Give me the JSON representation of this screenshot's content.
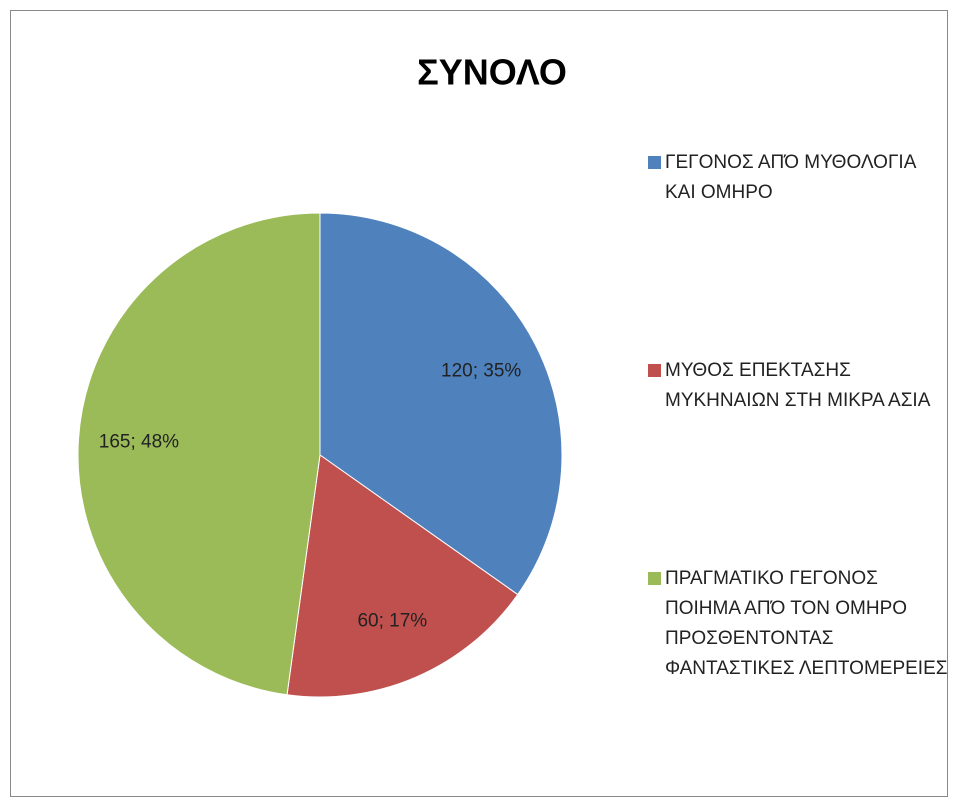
{
  "chart_data": {
    "type": "pie",
    "title": "ΣΥΝΟΛΟ",
    "categories": [
      "ΓΕΓΟΝΟΣ ΑΠΌ ΜΥΘΟΛΟΓΙΑ ΚΑΙ ΟΜΗΡΟ",
      "ΜΥΘΟΣ ΕΠΕΚΤΑΣΗΣ ΜΥΚΗΝΑΙΩΝ ΣΤΗ ΜΙΚΡΑ ΑΣΙΑ",
      "ΠΡΑΓΜΑΤΙΚΟ ΓΕΓΟΝΟΣ ΠΟΙΗΜΑ ΑΠΌ ΤΟΝ ΟΜΗΡΟ ΠΡΟΣΘΕΝΤΟΝΤΑΣ ΦΑΝΤΑΣΤΙΚΕΣ ΛΕΠΤΟΜΕΡΕΙΕΣ"
    ],
    "values": [
      120,
      60,
      165
    ],
    "value_labels": [
      "120; 35%",
      "60; 17%",
      "165; 48%"
    ],
    "colors": [
      "#4f81bd",
      "#c0504d",
      "#9bbb59"
    ],
    "legend": "right"
  }
}
